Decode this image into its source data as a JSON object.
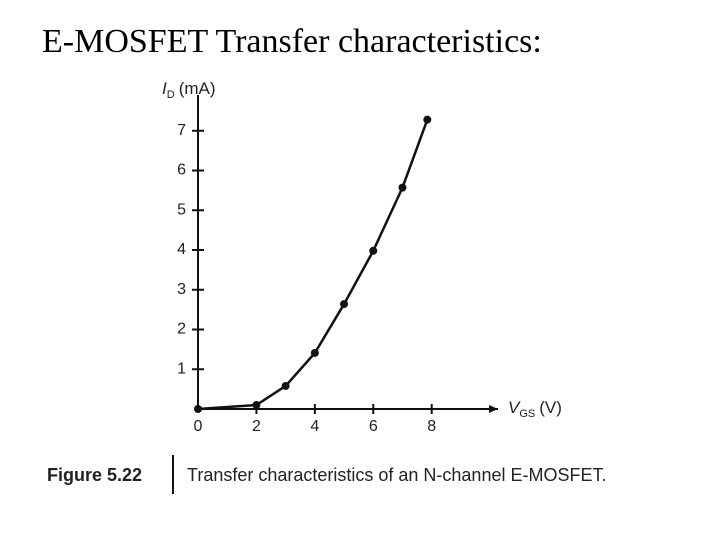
{
  "slide_title": "E-MOSFET Transfer characteristics:",
  "chart_data": {
    "type": "line",
    "ylabel": {
      "symbol": "I",
      "subscript": "D",
      "unit": "(mA)"
    },
    "xlabel": {
      "symbol": "V",
      "subscript": "GS",
      "unit": "(V)"
    },
    "x": [
      0,
      2,
      3,
      4,
      5,
      6,
      7,
      7.85
    ],
    "series": [
      {
        "color": "#111111",
        "values": [
          0,
          0.1,
          0.58,
          1.41,
          2.64,
          3.98,
          5.57,
          7.28
        ]
      }
    ],
    "xlim": [
      0,
      10.27
    ],
    "ylim": [
      0,
      7.9
    ],
    "xticks": [
      0,
      2,
      4,
      6,
      8
    ],
    "yticks": [
      1,
      2,
      3,
      4,
      5,
      6,
      7
    ],
    "caption": {
      "label": "Figure 5.22",
      "text": "Transfer characteristics of an N-channel E-MOSFET."
    }
  }
}
